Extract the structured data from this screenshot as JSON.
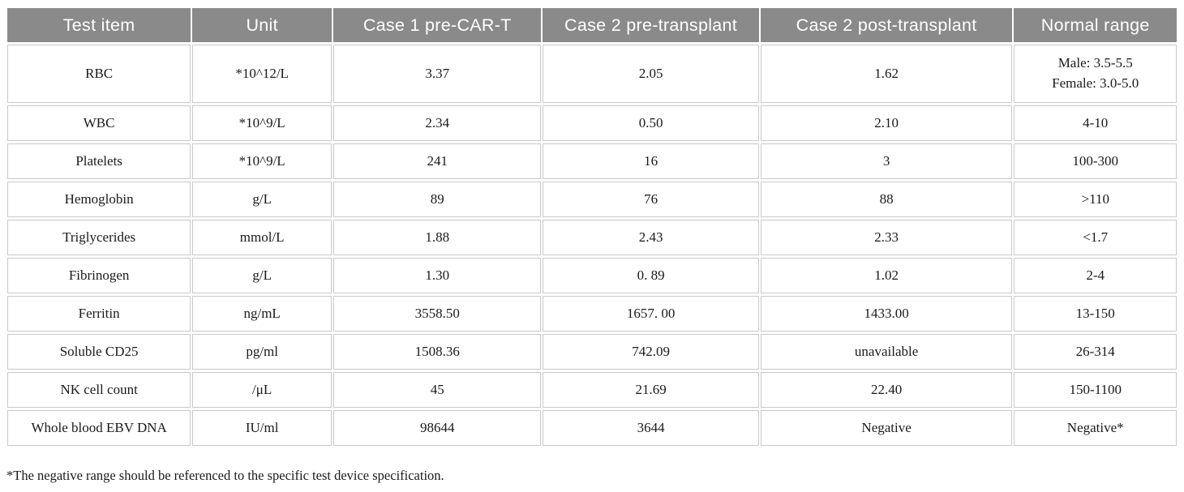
{
  "table": {
    "columns": [
      "Test item",
      "Unit",
      "Case 1 pre-CAR-T",
      "Case 2 pre-transplant",
      "Case 2 post-transplant",
      "Normal range"
    ],
    "rows": [
      [
        "RBC",
        "*10^12/L",
        "3.37",
        "2.05",
        "1.62",
        "Male: 3.5-5.5\nFemale: 3.0-5.0"
      ],
      [
        "WBC",
        "*10^9/L",
        "2.34",
        "0.50",
        "2.10",
        "4-10"
      ],
      [
        "Platelets",
        "*10^9/L",
        "241",
        "16",
        "3",
        "100-300"
      ],
      [
        "Hemoglobin",
        "g/L",
        "89",
        "76",
        "88",
        ">110"
      ],
      [
        "Triglycerides",
        "mmol/L",
        "1.88",
        "2.43",
        "2.33",
        "<1.7"
      ],
      [
        "Fibrinogen",
        "g/L",
        "1.30",
        "0. 89",
        "1.02",
        "2-4"
      ],
      [
        "Ferritin",
        "ng/mL",
        "3558.50",
        "1657. 00",
        "1433.00",
        "13-150"
      ],
      [
        "Soluble CD25",
        "pg/ml",
        "1508.36",
        "742.09",
        "unavailable",
        "26-314"
      ],
      [
        "NK cell count",
        "/μL",
        "45",
        "21.69",
        "22.40",
        "150-1100"
      ],
      [
        "Whole blood EBV DNA",
        "IU/ml",
        "98644",
        "3644",
        "Negative",
        "Negative*"
      ]
    ]
  },
  "footnote": "*The negative range should be referenced to the specific test device specification.",
  "colors": {
    "header_bg": "#8a8a8a",
    "header_text": "#ffffff",
    "cell_border": "#c9c9c9",
    "body_text": "#1a1a1a"
  }
}
